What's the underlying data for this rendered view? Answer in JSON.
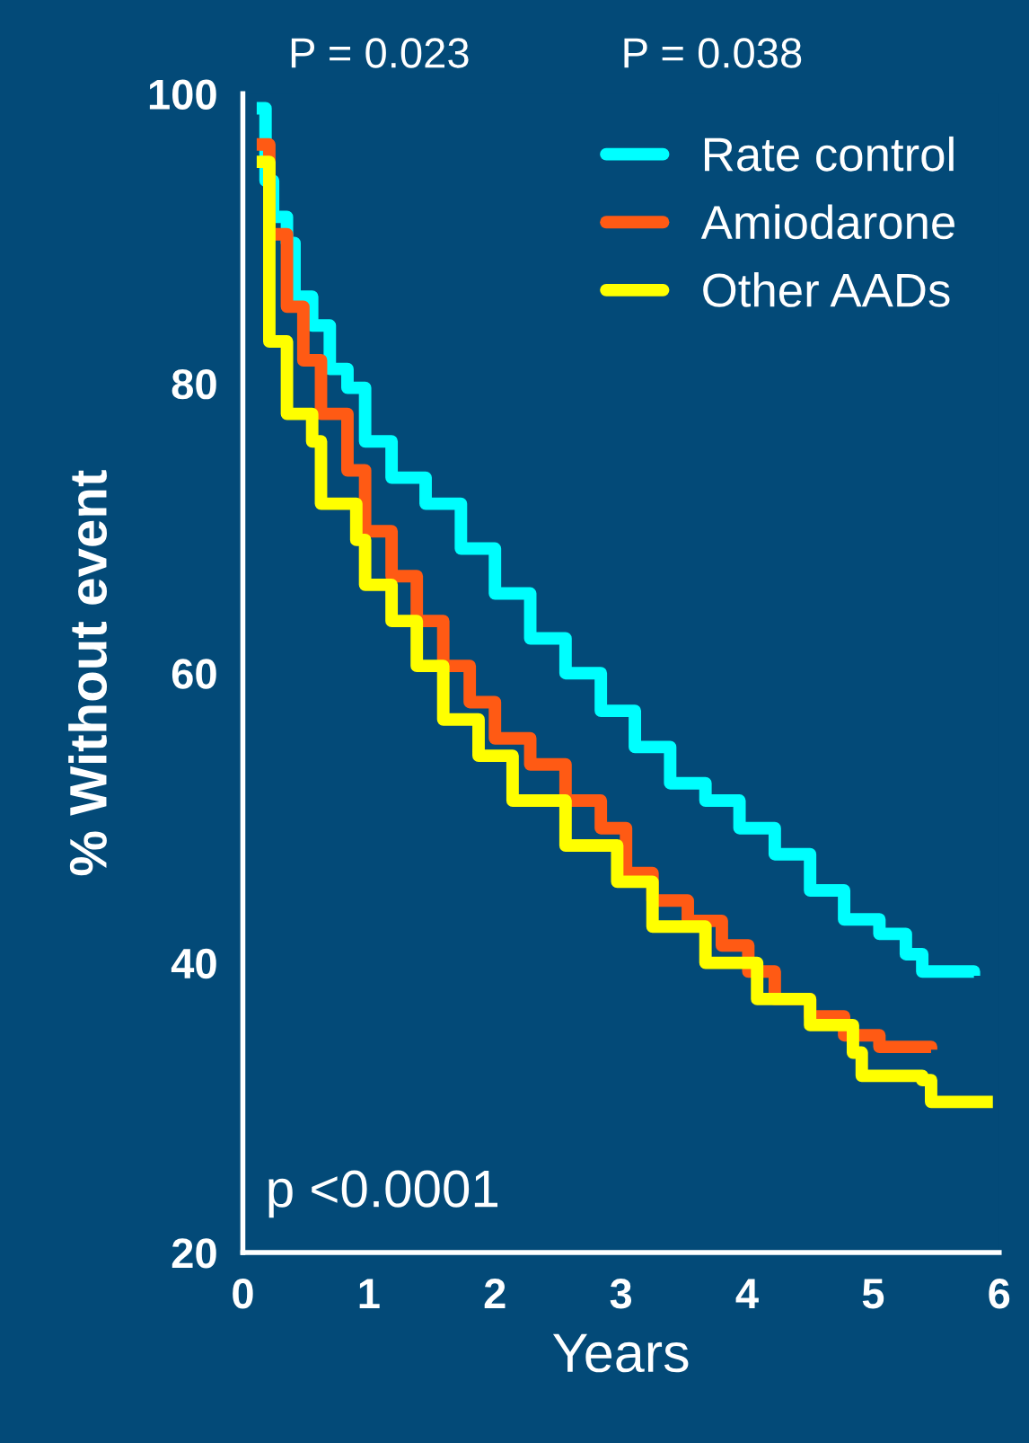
{
  "chart_data": {
    "type": "step",
    "xlabel": "Years",
    "ylabel": "% Without event",
    "xlim": [
      0,
      6
    ],
    "xticks": [
      0,
      1,
      2,
      3,
      4,
      5,
      6
    ],
    "ylim": [
      20,
      100
    ],
    "yticks": [
      20,
      40,
      60,
      80,
      100
    ],
    "grid": false,
    "legend": "top right",
    "annotations": [
      "P = 0.023",
      "P = 0.038",
      "p <0.0001"
    ],
    "series": [
      {
        "name": "Rate control",
        "color": "#00ffff",
        "x": [
          0.11,
          0.18,
          0.24,
          0.35,
          0.41,
          0.55,
          0.69,
          0.83,
          0.97,
          1.18,
          1.45,
          1.73,
          2.0,
          2.28,
          2.56,
          2.84,
          3.11,
          3.39,
          3.67,
          3.94,
          4.22,
          4.5,
          4.77,
          5.05,
          5.26,
          5.39,
          5.8
        ],
        "values": [
          99,
          94,
          91.5,
          89.7,
          86,
          84,
          81,
          79.7,
          76,
          73.5,
          71.7,
          68.6,
          65.5,
          62.4,
          60,
          57.4,
          54.9,
          52.4,
          51.2,
          49.3,
          47.5,
          45,
          43,
          42,
          40.6,
          39.4,
          39.1
        ]
      },
      {
        "name": "Amiodarone",
        "color": "#ff5a14",
        "x": [
          0.11,
          0.21,
          0.35,
          0.48,
          0.62,
          0.83,
          0.97,
          1.18,
          1.38,
          1.59,
          1.8,
          2.0,
          2.28,
          2.56,
          2.84,
          3.04,
          3.25,
          3.53,
          3.8,
          4.01,
          4.22,
          4.5,
          4.77,
          5.05,
          5.46
        ],
        "values": [
          96.5,
          90.3,
          85.3,
          81.6,
          77.9,
          74,
          69.8,
          66.7,
          63.6,
          60.5,
          58,
          55.5,
          53.7,
          51.2,
          49.3,
          46.2,
          44.3,
          42.9,
          41.2,
          39.4,
          37.5,
          36.3,
          35,
          34.2,
          34
        ]
      },
      {
        "name": "Other AADs",
        "color": "#ffff00",
        "x": [
          0.11,
          0.21,
          0.35,
          0.55,
          0.62,
          0.9,
          0.97,
          1.18,
          1.38,
          1.59,
          1.87,
          2.14,
          2.56,
          2.97,
          3.25,
          3.67,
          4.08,
          4.5,
          4.84,
          4.91,
          5.39,
          5.46,
          5.95
        ],
        "values": [
          95.3,
          82.9,
          77.9,
          76,
          71.7,
          69.2,
          66.1,
          63.6,
          60.5,
          56.8,
          54.3,
          51.2,
          48.1,
          45.6,
          42.5,
          40,
          37.5,
          35.7,
          33.8,
          32.2,
          31.9,
          30.4,
          30.4
        ]
      }
    ]
  }
}
